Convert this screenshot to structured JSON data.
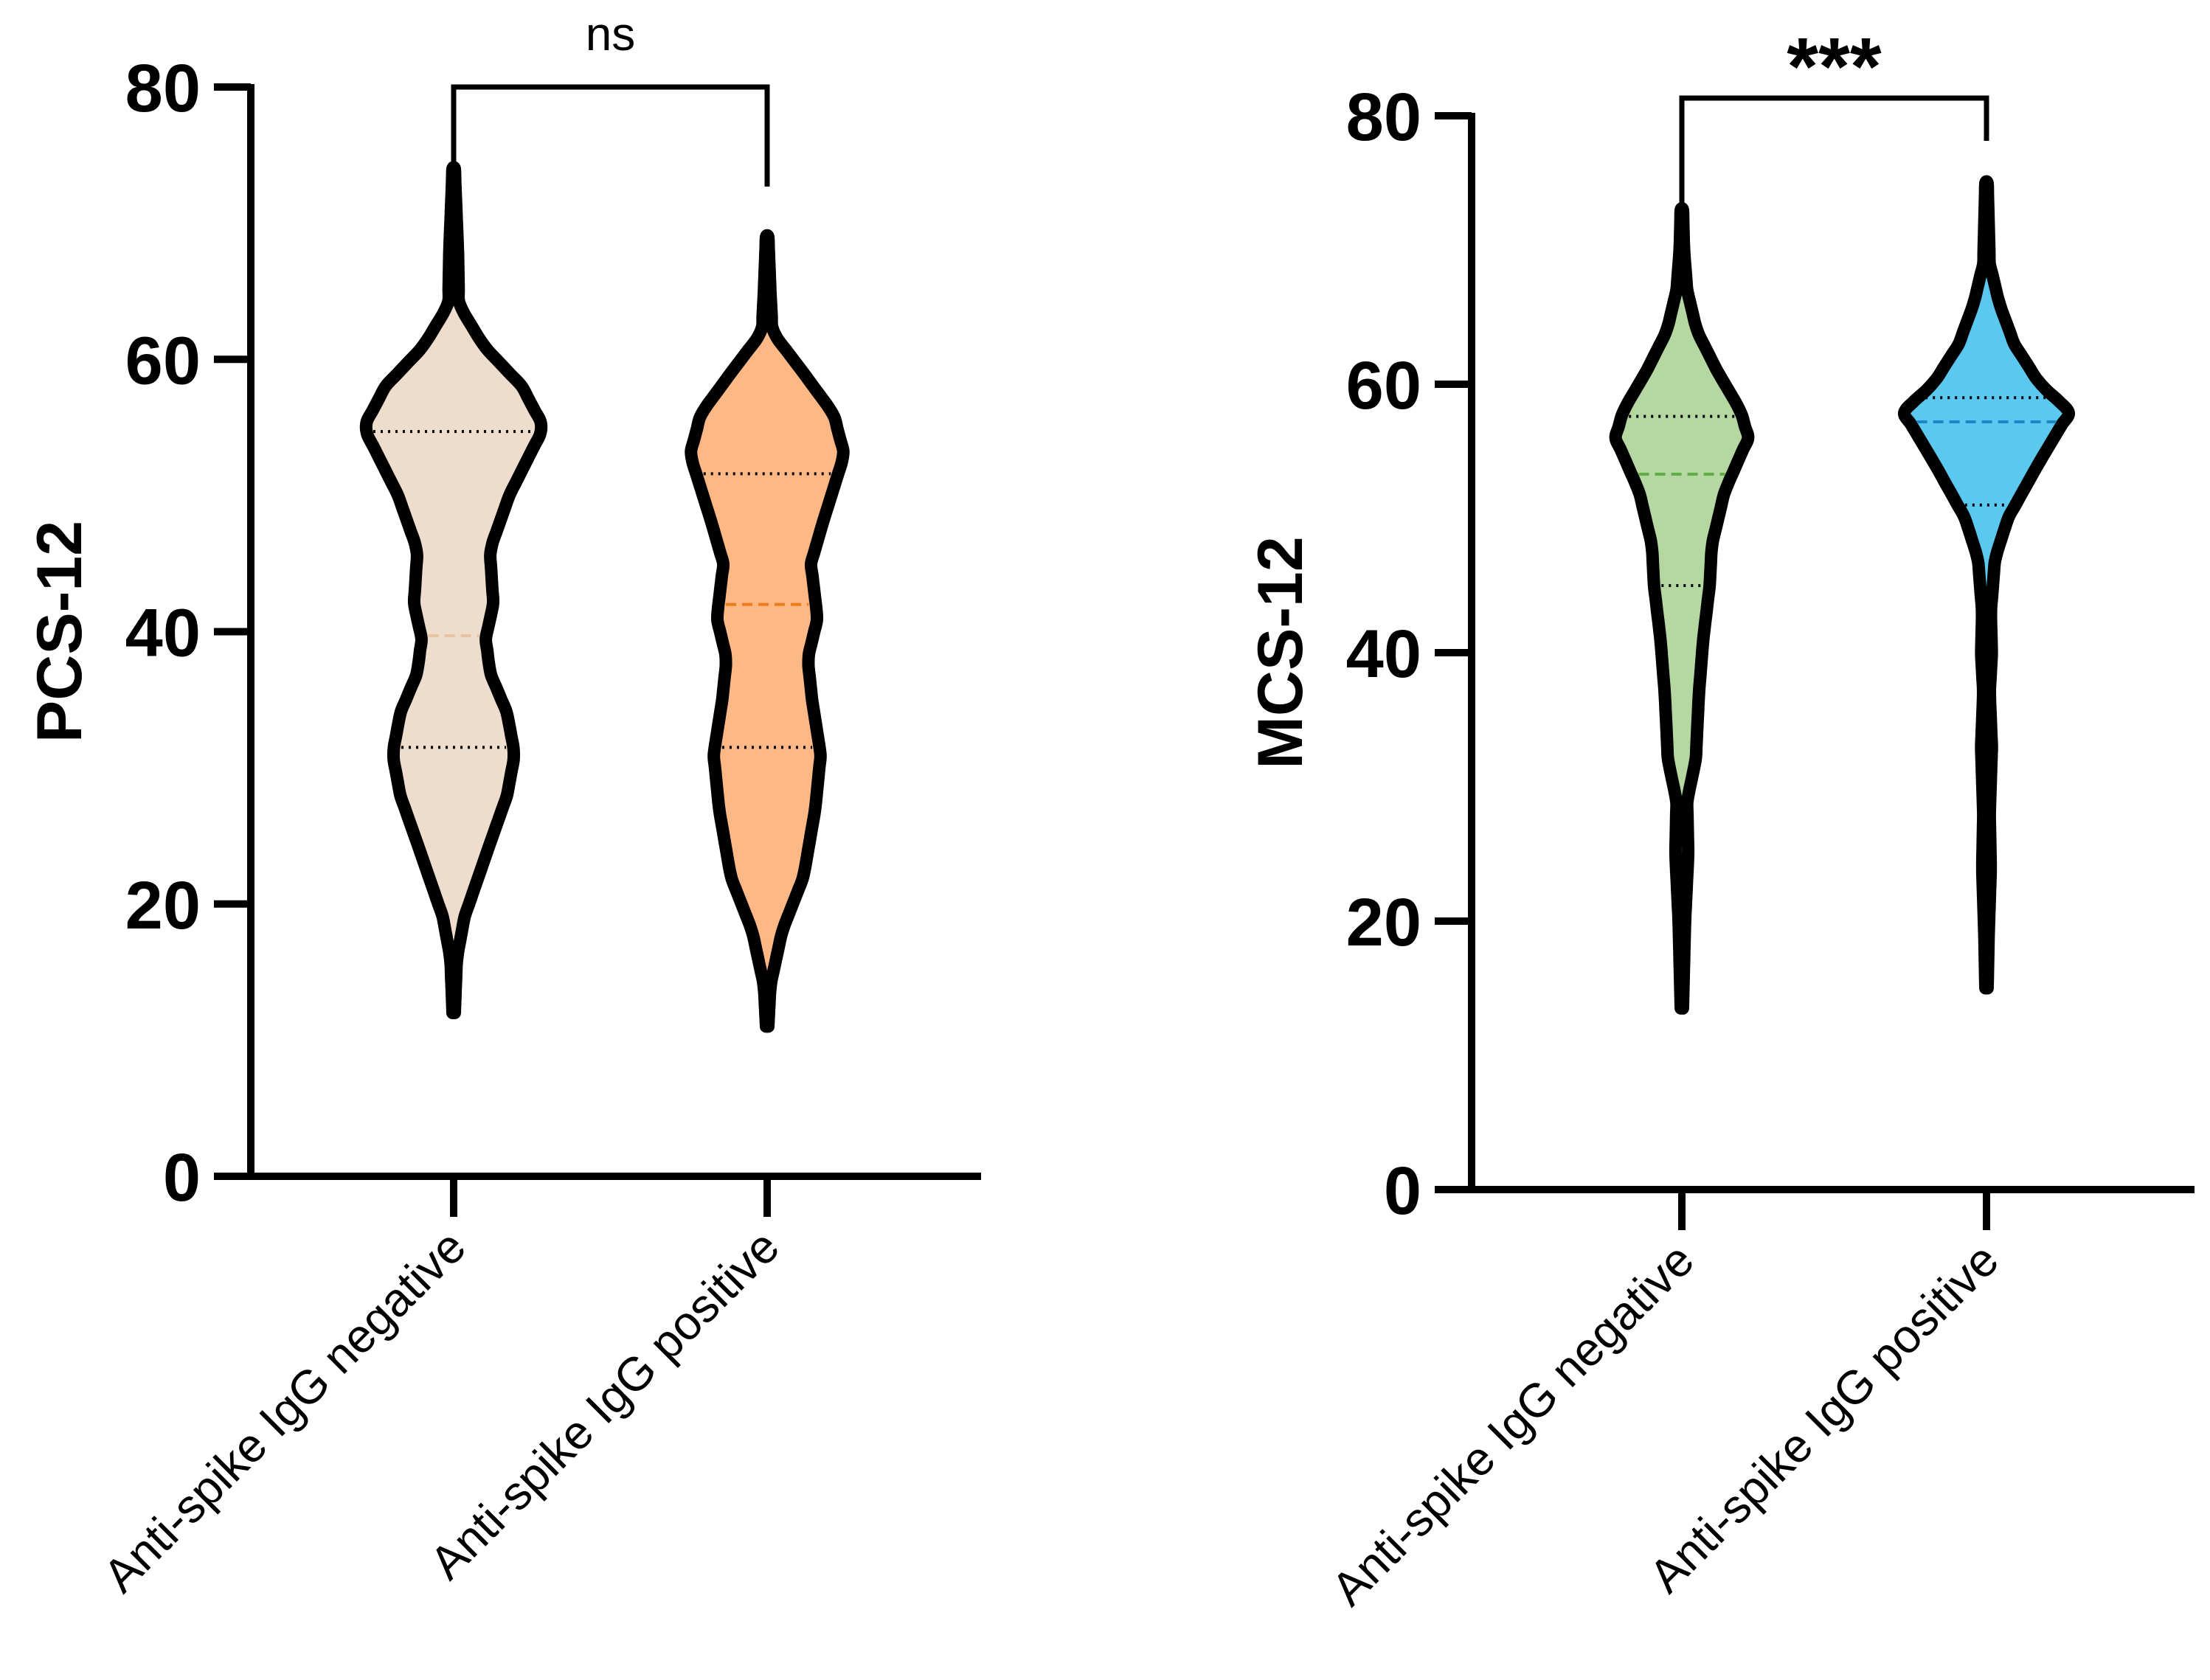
{
  "chart_data": [
    {
      "type": "violin",
      "title": "",
      "xlabel": "",
      "ylabel": "PCS-12",
      "ylim": [
        0,
        80
      ],
      "yticks": [
        "0",
        "20",
        "40",
        "60",
        "80"
      ],
      "categories": [
        "Anti-spike IgG negative",
        "Anti-spike IgG positive"
      ],
      "significance": "ns",
      "series": [
        {
          "color": "#EEDDCD",
          "median_color": "#E8C3A2",
          "min": 12,
          "max": 74,
          "q1": 31.5,
          "median": 39.7,
          "q3": 54.7,
          "density": [
            [
              12,
              0.01
            ],
            [
              16,
              0.03
            ],
            [
              19,
              0.1
            ],
            [
              24,
              0.32
            ],
            [
              28,
              0.5
            ],
            [
              31,
              0.57
            ],
            [
              34,
              0.5
            ],
            [
              37,
              0.34
            ],
            [
              39.5,
              0.3
            ],
            [
              42,
              0.37
            ],
            [
              46,
              0.34
            ],
            [
              50,
              0.52
            ],
            [
              55,
              0.84
            ],
            [
              58,
              0.64
            ],
            [
              61,
              0.28
            ],
            [
              64,
              0.05
            ],
            [
              68,
              0.04
            ],
            [
              72,
              0.02
            ],
            [
              74,
              0.01
            ]
          ]
        },
        {
          "color": "#FDB886",
          "median_color": "#F07A1C",
          "min": 11,
          "max": 69,
          "q1": 31.5,
          "median": 42,
          "q3": 51.6,
          "density": [
            [
              11,
              0.01
            ],
            [
              14,
              0.03
            ],
            [
              18,
              0.14
            ],
            [
              22,
              0.34
            ],
            [
              27,
              0.45
            ],
            [
              31,
              0.5
            ],
            [
              35,
              0.42
            ],
            [
              38,
              0.38
            ],
            [
              41,
              0.47
            ],
            [
              45,
              0.41
            ],
            [
              48,
              0.52
            ],
            [
              53,
              0.72
            ],
            [
              56,
              0.62
            ],
            [
              59,
              0.34
            ],
            [
              62,
              0.05
            ],
            [
              65,
              0.03
            ],
            [
              69,
              0.01
            ]
          ]
        }
      ]
    },
    {
      "type": "violin",
      "title": "",
      "xlabel": "",
      "ylabel": "MCS-12",
      "ylim": [
        0,
        80
      ],
      "yticks": [
        "0",
        "20",
        "40",
        "60",
        "80"
      ],
      "categories": [
        "Anti-spike IgG negative",
        "Anti-spike IgG positive"
      ],
      "significance": "***",
      "series": [
        {
          "color": "#B5D8A2",
          "median_color": "#5FAE47",
          "min": 13.5,
          "max": 73,
          "q1": 45,
          "median": 53.3,
          "q3": 57.6,
          "density": [
            [
              13.5,
              0.01
            ],
            [
              20,
              0.03
            ],
            [
              25,
              0.06
            ],
            [
              29,
              0.05
            ],
            [
              32,
              0.13
            ],
            [
              37,
              0.16
            ],
            [
              41,
              0.2
            ],
            [
              45,
              0.26
            ],
            [
              48,
              0.28
            ],
            [
              52,
              0.4
            ],
            [
              56,
              0.62
            ],
            [
              58,
              0.55
            ],
            [
              61,
              0.33
            ],
            [
              64,
              0.14
            ],
            [
              67,
              0.05
            ],
            [
              70,
              0.02
            ],
            [
              73,
              0.01
            ]
          ]
        },
        {
          "color": "#5BC8F0",
          "median_color": "#1E86C8",
          "min": 15,
          "max": 75,
          "q1": 51,
          "median": 57.2,
          "q3": 59,
          "density": [
            [
              15,
              0.01
            ],
            [
              19,
              0.02
            ],
            [
              24,
              0.04
            ],
            [
              28,
              0.03
            ],
            [
              33,
              0.05
            ],
            [
              37,
              0.03
            ],
            [
              40,
              0.05
            ],
            [
              43,
              0.04
            ],
            [
              47,
              0.08
            ],
            [
              50,
              0.2
            ],
            [
              54,
              0.48
            ],
            [
              58,
              0.78
            ],
            [
              60,
              0.5
            ],
            [
              63,
              0.26
            ],
            [
              66,
              0.12
            ],
            [
              69,
              0.03
            ],
            [
              72,
              0.02
            ],
            [
              75,
              0.01
            ]
          ]
        }
      ]
    }
  ]
}
